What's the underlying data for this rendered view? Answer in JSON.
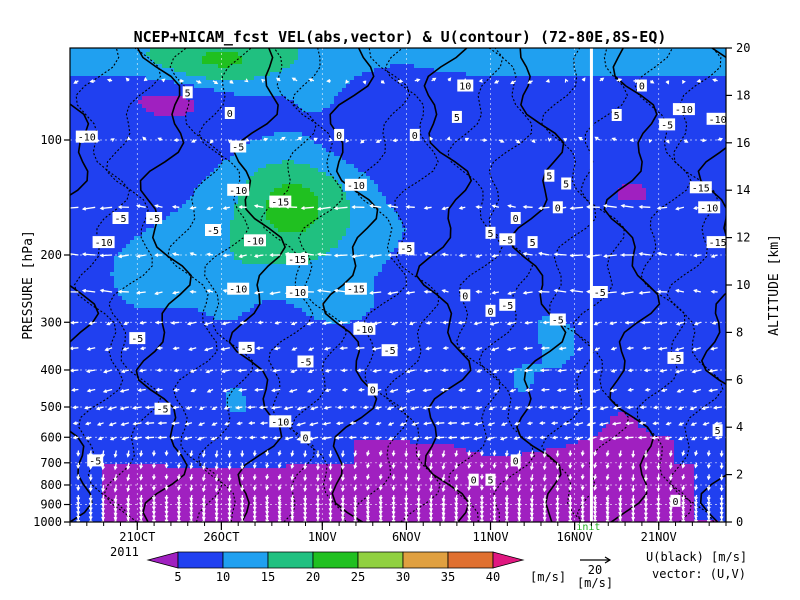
{
  "chart_data": {
    "type": "heatmap",
    "title": "NCEP+NICAM_fcst VEL(abs,vector) & U(contour)  (72-80E,8S-EQ)",
    "xlabel": "",
    "ylabel_left": "PRESSURE [hPa]",
    "ylabel_right": "ALTITUDE [km]",
    "year": "2011",
    "x_range": [
      "2011-10-17",
      "2011-11-25"
    ],
    "x_ticks": [
      {
        "date": "2011-10-21",
        "label": "21OCT"
      },
      {
        "date": "2011-10-26",
        "label": "26OCT"
      },
      {
        "date": "2011-11-01",
        "label": "1NOV"
      },
      {
        "date": "2011-11-06",
        "label": "6NOV"
      },
      {
        "date": "2011-11-11",
        "label": "11NOV"
      },
      {
        "date": "2011-11-16",
        "label": "16NOV"
      },
      {
        "date": "2011-11-21",
        "label": "21NOV"
      }
    ],
    "pressure_ticks": [
      100,
      200,
      300,
      400,
      500,
      600,
      700,
      800,
      900,
      1000
    ],
    "pressure_range": [
      1000,
      50
    ],
    "log_pressure_axis": true,
    "altitude_ticks": [
      0,
      2,
      4,
      6,
      8,
      10,
      12,
      14,
      16,
      18,
      20
    ],
    "forecast_start_date": "2011-11-17",
    "forecast_label": "init",
    "colorbar": {
      "levels": [
        5,
        10,
        15,
        20,
        25,
        30,
        35,
        40
      ],
      "unit": "[m/s]",
      "colors": [
        "#a020c0",
        "#2040f0",
        "#20a0f0",
        "#20c080",
        "#20c020",
        "#90d040",
        "#e0a040",
        "#e07030",
        "#e01880"
      ]
    },
    "vector_ref": {
      "value": "20",
      "unit": "[m/s]"
    },
    "legend_text": [
      "U(black) [m/s]",
      "vector: (U,V)"
    ],
    "contour_labels": [
      {
        "date": "2011-10-18",
        "p": 98,
        "text": "-10"
      },
      {
        "date": "2011-10-20",
        "p": 160,
        "text": "-5"
      },
      {
        "date": "2011-10-22",
        "p": 160,
        "text": "-5"
      },
      {
        "date": "2011-10-19",
        "p": 185,
        "text": "-10"
      },
      {
        "date": "2011-10-24",
        "p": 75,
        "text": "5"
      },
      {
        "date": "2011-10-26.5",
        "p": 85,
        "text": "0"
      },
      {
        "date": "2011-10-27",
        "p": 104,
        "text": "-5"
      },
      {
        "date": "2011-10-25.5",
        "p": 172,
        "text": "-5"
      },
      {
        "date": "2011-10-27",
        "p": 135,
        "text": "-10"
      },
      {
        "date": "2011-10-29.5",
        "p": 145,
        "text": "-15"
      },
      {
        "date": "2011-10-28",
        "p": 183,
        "text": "-10"
      },
      {
        "date": "2011-10-30.5",
        "p": 205,
        "text": "-15"
      },
      {
        "date": "2011-10-27",
        "p": 245,
        "text": "-10"
      },
      {
        "date": "2011-10-30.5",
        "p": 250,
        "text": "-10"
      },
      {
        "date": "2011-11-03",
        "p": 131,
        "text": "-10"
      },
      {
        "date": "2011-11-03",
        "p": 245,
        "text": "-15"
      },
      {
        "date": "2011-11-03.5",
        "p": 312,
        "text": "-10"
      },
      {
        "date": "2011-11-02",
        "p": 97,
        "text": "0"
      },
      {
        "date": "2011-11-06.5",
        "p": 97,
        "text": "0"
      },
      {
        "date": "2011-11-09.5",
        "p": 72,
        "text": "10"
      },
      {
        "date": "2011-11-09",
        "p": 87,
        "text": "5"
      },
      {
        "date": "2011-11-06",
        "p": 192,
        "text": "-5"
      },
      {
        "date": "2011-11-09.5",
        "p": 255,
        "text": "0"
      },
      {
        "date": "2011-11-11",
        "p": 175,
        "text": "5"
      },
      {
        "date": "2011-11-12",
        "p": 182,
        "text": "-5"
      },
      {
        "date": "2011-11-12.5",
        "p": 160,
        "text": "0"
      },
      {
        "date": "2011-11-13.5",
        "p": 185,
        "text": "5"
      },
      {
        "date": "2011-11-14.5",
        "p": 124,
        "text": "5"
      },
      {
        "date": "2011-11-15.5",
        "p": 130,
        "text": "5"
      },
      {
        "date": "2011-11-15",
        "p": 150,
        "text": "0"
      },
      {
        "date": "2011-11-11",
        "p": 280,
        "text": "0"
      },
      {
        "date": "2011-11-12",
        "p": 270,
        "text": "-5"
      },
      {
        "date": "2011-11-15",
        "p": 295,
        "text": "-5"
      },
      {
        "date": "2011-11-17.5",
        "p": 250,
        "text": "-5"
      },
      {
        "date": "2011-11-05",
        "p": 355,
        "text": "-5"
      },
      {
        "date": "2011-10-27.5",
        "p": 350,
        "text": "-5"
      },
      {
        "date": "2011-10-31",
        "p": 380,
        "text": "-5"
      },
      {
        "date": "2011-10-21",
        "p": 330,
        "text": "-5"
      },
      {
        "date": "2011-10-22.5",
        "p": 505,
        "text": "-5"
      },
      {
        "date": "2011-10-29.5",
        "p": 545,
        "text": "-10"
      },
      {
        "date": "2011-10-31",
        "p": 600,
        "text": "0"
      },
      {
        "date": "2011-11-04",
        "p": 450,
        "text": "0"
      },
      {
        "date": "2011-11-10",
        "p": 775,
        "text": "0"
      },
      {
        "date": "2011-11-11",
        "p": 775,
        "text": "5"
      },
      {
        "date": "2011-11-12.5",
        "p": 690,
        "text": "0"
      },
      {
        "date": "2011-10-18.5",
        "p": 690,
        "text": "-5"
      },
      {
        "date": "2011-11-18.5",
        "p": 86,
        "text": "5"
      },
      {
        "date": "2011-11-20",
        "p": 72,
        "text": "0"
      },
      {
        "date": "2011-11-21.5",
        "p": 91,
        "text": "-5"
      },
      {
        "date": "2011-11-22.5",
        "p": 83,
        "text": "-10"
      },
      {
        "date": "2011-11-24.5",
        "p": 88,
        "text": "-10"
      },
      {
        "date": "2011-11-23.5",
        "p": 133,
        "text": "-15"
      },
      {
        "date": "2011-11-24",
        "p": 150,
        "text": "-10"
      },
      {
        "date": "2011-11-24.5",
        "p": 185,
        "text": "-15"
      },
      {
        "date": "2011-11-22",
        "p": 372,
        "text": "-5"
      },
      {
        "date": "2011-11-24.5",
        "p": 575,
        "text": "5"
      },
      {
        "date": "2011-11-22",
        "p": 880,
        "text": "0"
      }
    ]
  }
}
